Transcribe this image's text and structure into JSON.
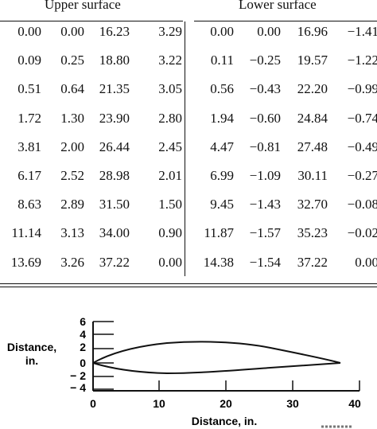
{
  "table": {
    "upper_header": "Upper surface",
    "lower_header": "Lower surface",
    "upper_rows": [
      [
        "0.00",
        "0.00",
        "16.23",
        "3.29"
      ],
      [
        "0.09",
        "0.25",
        "18.80",
        "3.22"
      ],
      [
        "0.51",
        "0.64",
        "21.35",
        "3.05"
      ],
      [
        "1.72",
        "1.30",
        "23.90",
        "2.80"
      ],
      [
        "3.81",
        "2.00",
        "26.44",
        "2.45"
      ],
      [
        "6.17",
        "2.52",
        "28.98",
        "2.01"
      ],
      [
        "8.63",
        "2.89",
        "31.50",
        "1.50"
      ],
      [
        "11.14",
        "3.13",
        "34.00",
        "0.90"
      ],
      [
        "13.69",
        "3.26",
        "37.22",
        "0.00"
      ]
    ],
    "lower_rows": [
      [
        "0.00",
        "0.00",
        "16.96",
        "−1.41"
      ],
      [
        "0.11",
        "−0.25",
        "19.57",
        "−1.22"
      ],
      [
        "0.56",
        "−0.43",
        "22.20",
        "−0.99"
      ],
      [
        "1.94",
        "−0.60",
        "24.84",
        "−0.74"
      ],
      [
        "4.47",
        "−0.81",
        "27.48",
        "−0.49"
      ],
      [
        "6.99",
        "−1.09",
        "30.11",
        "−0.27"
      ],
      [
        "9.45",
        "−1.43",
        "32.70",
        "−0.08"
      ],
      [
        "11.87",
        "−1.57",
        "35.23",
        "−0.02"
      ],
      [
        "14.38",
        "−1.54",
        "37.22",
        "0.00"
      ]
    ]
  },
  "figure": {
    "y_label_line1": "Distance,",
    "y_label_line2": "in.",
    "x_label": "Distance, in.",
    "y_ticks": [
      "6",
      "4",
      "2",
      "0",
      "− 2",
      "− 4"
    ],
    "x_ticks": [
      "0",
      "10",
      "20",
      "30",
      "40"
    ]
  }
}
